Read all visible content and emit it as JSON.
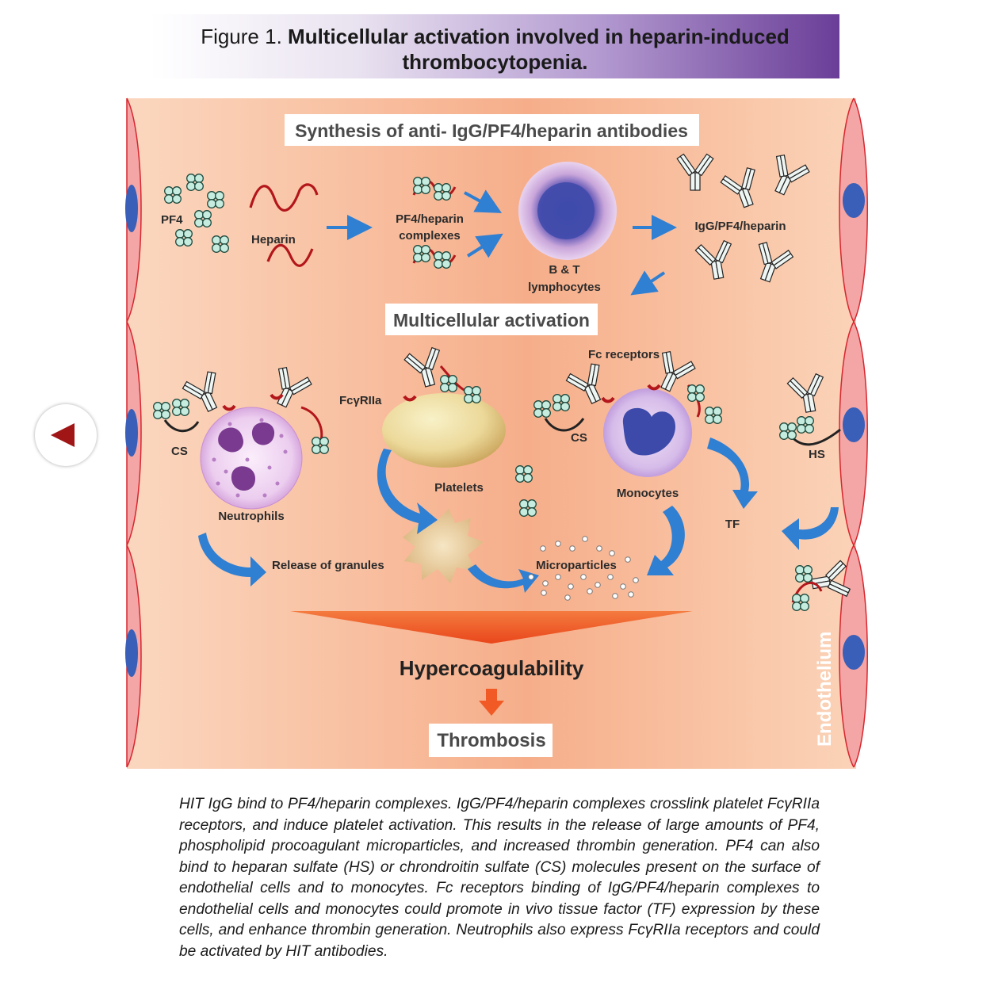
{
  "header": {
    "figure_prefix": "Figure 1.",
    "title_line1": "Multicellular activation involved in heparin-induced",
    "title_line2": "thrombocytopenia."
  },
  "diagram": {
    "top_box": "Synthesis of anti- IgG/PF4/heparin antibodies",
    "middle_box": "Multicellular activation",
    "bottom_box": "Thrombosis",
    "hypercoag": "Hypercoagulability",
    "endothelium": "Endothelium",
    "labels": {
      "pf4": "PF4",
      "heparin": "Heparin",
      "complexes_l1": "PF4/heparin",
      "complexes_l2": "complexes",
      "lymph_l1": "B & T",
      "lymph_l2": "lymphocytes",
      "igg": "IgG/PF4/heparin",
      "fc_receptors": "Fc receptors",
      "fcgr": "FcγRIIa",
      "cs_left": "CS",
      "cs_right": "CS",
      "hs": "HS",
      "neutrophils": "Neutrophils",
      "platelets": "Platelets",
      "monocytes": "Monocytes",
      "tf": "TF",
      "granules": "Release of granules",
      "microparticles": "Microparticles"
    }
  },
  "caption": "HIT IgG bind to PF4/heparin complexes. IgG/PF4/heparin complexes crosslink platelet FcγRIIa receptors, and induce platelet activation. This results in the release of large amounts of PF4, phospholipid procoagulant microparticles, and increased thrombin generation. PF4 can also bind to heparan sulfate (HS) or chrondroitin sulfate (CS) molecules present on the surface of endothelial cells and to monocytes. Fc receptors binding of IgG/PF4/heparin complexes to endothelial cells and monocytes could promote in vivo tissue factor (TF) expression by these cells, and enhance thrombin generation. Neutrophils also express FcγRIIa receptors and could be activated by HIT antibodies.",
  "colors": {
    "header_dark": "#6a3e98",
    "panel_bg": "#f9cdb0",
    "panel_center": "#f6ab86",
    "endothelium": "#f4a6a6",
    "nucleus": "#3a5fb8",
    "arrow_blue": "#2f7fd3",
    "arrow_orange": "#f15a24",
    "heparin_red": "#b3161b",
    "back_arrow": "#a01515"
  }
}
